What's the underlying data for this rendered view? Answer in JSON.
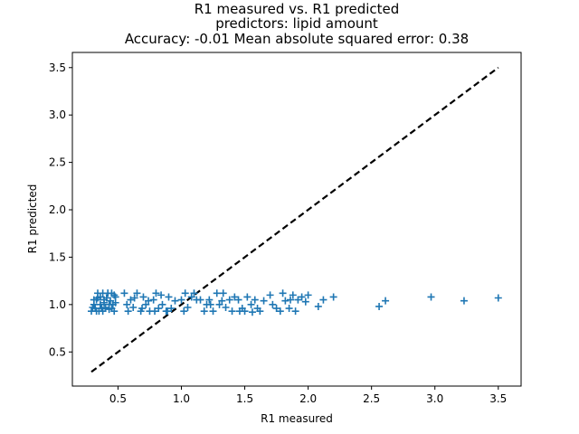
{
  "chart_data": {
    "type": "scatter",
    "title_lines": [
      "R1 measured vs. R1 predicted",
      "predictors: lipid amount",
      "Accuracy: -0.01 Mean absolute squared error: 0.38"
    ],
    "xlabel": "R1 measured",
    "ylabel": "R1 predicted",
    "xlim": [
      0.14,
      3.68
    ],
    "ylim": [
      0.14,
      3.66
    ],
    "xticks": [
      0.5,
      1.0,
      1.5,
      2.0,
      2.5,
      3.0,
      3.5
    ],
    "xtick_labels": [
      "0.5",
      "1.0",
      "1.5",
      "2.0",
      "2.5",
      "3.0",
      "3.5"
    ],
    "yticks": [
      0.5,
      1.0,
      1.5,
      2.0,
      2.5,
      3.0,
      3.5
    ],
    "ytick_labels": [
      "0.5",
      "1.0",
      "1.5",
      "2.0",
      "2.5",
      "3.0",
      "3.5"
    ],
    "marker": "+",
    "marker_color": "#1f77b4",
    "reference_line": {
      "style": "dashed",
      "color": "#000000",
      "x": [
        0.29,
        3.5
      ],
      "y": [
        0.29,
        3.5
      ]
    },
    "points": {
      "x": [
        0.29,
        0.31,
        0.32,
        0.33,
        0.34,
        0.35,
        0.36,
        0.37,
        0.38,
        0.39,
        0.4,
        0.41,
        0.42,
        0.43,
        0.44,
        0.45,
        0.46,
        0.47,
        0.48,
        0.3,
        0.33,
        0.36,
        0.39,
        0.42,
        0.45,
        0.48,
        0.34,
        0.38,
        0.43,
        0.47,
        0.31,
        0.4,
        0.55,
        0.58,
        0.6,
        0.62,
        0.65,
        0.68,
        0.7,
        0.72,
        0.75,
        0.78,
        0.8,
        0.82,
        0.85,
        0.88,
        0.9,
        0.92,
        0.95,
        0.57,
        0.63,
        0.69,
        0.74,
        0.79,
        0.84,
        0.89,
        1.0,
        1.03,
        1.05,
        1.08,
        1.1,
        1.15,
        1.18,
        1.2,
        1.22,
        1.25,
        1.28,
        1.3,
        1.32,
        1.35,
        1.38,
        1.4,
        1.42,
        1.45,
        1.48,
        1.02,
        1.12,
        1.23,
        1.33,
        1.46,
        1.5,
        1.52,
        1.55,
        1.58,
        1.6,
        1.62,
        1.65,
        1.7,
        1.75,
        1.78,
        1.8,
        1.82,
        1.85,
        1.88,
        1.9,
        1.92,
        1.95,
        1.98,
        2.0,
        1.56,
        1.72,
        1.86,
        2.08,
        2.12,
        2.2,
        2.56,
        2.61,
        2.97,
        3.23,
        3.5
      ],
      "y": [
        0.93,
        1.0,
        0.96,
        1.05,
        1.12,
        0.93,
        1.08,
        0.96,
        1.12,
        1.02,
        0.96,
        1.07,
        1.12,
        0.95,
        1.04,
        1.12,
        1.0,
        0.93,
        1.08,
        0.97,
        0.93,
        1.0,
        1.05,
        1.12,
        0.96,
        1.02,
        1.07,
        0.93,
        1.0,
        1.1,
        1.05,
        0.97,
        1.12,
        0.93,
        1.05,
        0.97,
        1.12,
        0.93,
        1.08,
        1.0,
        0.93,
        1.05,
        1.12,
        0.96,
        1.0,
        0.93,
        1.08,
        0.96,
        1.04,
        1.0,
        1.07,
        0.96,
        1.04,
        0.93,
        1.1,
        0.93,
        1.05,
        1.12,
        0.97,
        1.08,
        1.12,
        1.05,
        0.93,
        1.0,
        1.05,
        0.93,
        1.12,
        1.0,
        1.04,
        0.97,
        1.05,
        0.93,
        1.08,
        1.05,
        0.96,
        0.93,
        1.05,
        1.0,
        1.12,
        0.93,
        0.93,
        1.08,
        1.0,
        1.05,
        0.96,
        0.93,
        1.04,
        1.1,
        0.96,
        0.93,
        1.12,
        1.04,
        0.96,
        1.1,
        0.93,
        1.05,
        1.08,
        1.03,
        1.1,
        0.92,
        1.0,
        1.05,
        0.98,
        1.05,
        1.08,
        0.98,
        1.04,
        1.08,
        1.04,
        1.07
      ]
    }
  }
}
